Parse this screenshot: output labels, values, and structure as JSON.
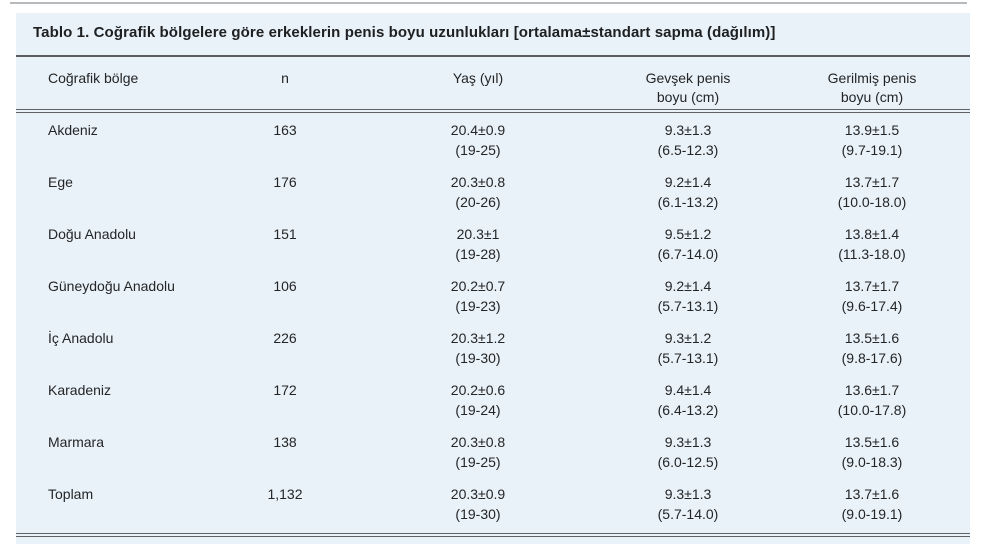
{
  "colors": {
    "panel_background": "#e9f2f8",
    "rule_dark": "#5f6164",
    "top_divider": "#b7babd",
    "text": "#232527"
  },
  "table": {
    "title": "Tablo 1. Coğrafik bölgelere göre erkeklerin penis boyu uzunlukları [ortalama±standart sapma (dağılım)]",
    "headers": [
      {
        "line1": "Coğrafik bölge"
      },
      {
        "line1": "n"
      },
      {
        "line1": "Yaş (yıl)"
      },
      {
        "line1": "Gevşek penis",
        "line2": "boyu (cm)"
      },
      {
        "line1": "Gerilmiş penis",
        "line2": "boyu (cm)"
      }
    ],
    "rows": [
      {
        "region": "Akdeniz",
        "n": "163",
        "age": "20.4±0.9",
        "age_range": "(19-25)",
        "flaccid": "9.3±1.3",
        "flaccid_range": "(6.5-12.3)",
        "stretched": "13.9±1.5",
        "stretched_range": "(9.7-19.1)"
      },
      {
        "region": "Ege",
        "n": "176",
        "age": "20.3±0.8",
        "age_range": "(20-26)",
        "flaccid": "9.2±1.4",
        "flaccid_range": "(6.1-13.2)",
        "stretched": "13.7±1.7",
        "stretched_range": "(10.0-18.0)"
      },
      {
        "region": "Doğu Anadolu",
        "n": "151",
        "age": "20.3±1",
        "age_range": "(19-28)",
        "flaccid": "9.5±1.2",
        "flaccid_range": "(6.7-14.0)",
        "stretched": "13.8±1.4",
        "stretched_range": "(11.3-18.0)"
      },
      {
        "region": "Güneydoğu Anadolu",
        "n": "106",
        "age": "20.2±0.7",
        "age_range": "(19-23)",
        "flaccid": "9.2±1.4",
        "flaccid_range": "(5.7-13.1)",
        "stretched": "13.7±1.7",
        "stretched_range": "(9.6-17.4)"
      },
      {
        "region": "İç Anadolu",
        "n": "226",
        "age": "20.3±1.2",
        "age_range": "(19-30)",
        "flaccid": "9.3±1.2",
        "flaccid_range": "(5.7-13.1)",
        "stretched": "13.5±1.6",
        "stretched_range": "(9.8-17.6)"
      },
      {
        "region": "Karadeniz",
        "n": "172",
        "age": "20.2±0.6",
        "age_range": "(19-24)",
        "flaccid": "9.4±1.4",
        "flaccid_range": "(6.4-13.2)",
        "stretched": "13.6±1.7",
        "stretched_range": "(10.0-17.8)"
      },
      {
        "region": "Marmara",
        "n": "138",
        "age": "20.3±0.8",
        "age_range": "(19-25)",
        "flaccid": "9.3±1.3",
        "flaccid_range": "(6.0-12.5)",
        "stretched": "13.5±1.6",
        "stretched_range": "(9.0-18.3)"
      },
      {
        "region": "Toplam",
        "n": "1,132",
        "age": "20.3±0.9",
        "age_range": "(19-30)",
        "flaccid": "9.3±1.3",
        "flaccid_range": "(5.7-14.0)",
        "stretched": "13.7±1.6",
        "stretched_range": "(9.0-19.1)"
      }
    ]
  }
}
